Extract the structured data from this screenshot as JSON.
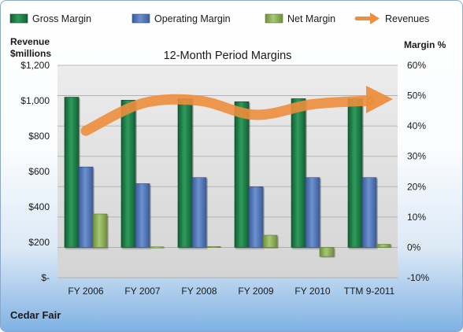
{
  "chart_data": {
    "type": "bar",
    "title": "12-Month Period Margins",
    "left_axis_title_line1": "Revenue",
    "left_axis_title_line2": "$millions",
    "right_axis_title": "Margin %",
    "company": "Cedar Fair",
    "categories": [
      "FY 2006",
      "FY 2007",
      "FY 2008",
      "FY 2009",
      "FY 2010",
      "TTM 9-2011"
    ],
    "left_ticks": [
      "$-",
      "$200",
      "$400",
      "$600",
      "$800",
      "$1,000",
      "$1,200"
    ],
    "right_ticks": [
      "-10%",
      "0%",
      "10%",
      "20%",
      "30%",
      "40%",
      "50%",
      "60%"
    ],
    "ylim_left": [
      0,
      1200
    ],
    "ylim_right": [
      -10,
      60
    ],
    "series": [
      {
        "name": "Gross Margin",
        "axis": "right",
        "kind": "bar",
        "color": "#1e7a45",
        "values": [
          49.5,
          48.5,
          49,
          48,
          49,
          49
        ]
      },
      {
        "name": "Operating Margin",
        "axis": "right",
        "kind": "bar",
        "color": "#4f74b9",
        "values": [
          26.5,
          21,
          23,
          20,
          23,
          23
        ]
      },
      {
        "name": "Net Margin",
        "axis": "right",
        "kind": "bar",
        "color": "#8db255",
        "values": [
          11,
          0.2,
          0.3,
          4,
          -3,
          1
        ]
      },
      {
        "name": "Revenues",
        "axis": "left",
        "kind": "line",
        "color": "#ec8e3c",
        "values": [
          830,
          985,
          1000,
          920,
          980,
          1000
        ]
      }
    ],
    "legend_position": "top",
    "grid": true
  }
}
